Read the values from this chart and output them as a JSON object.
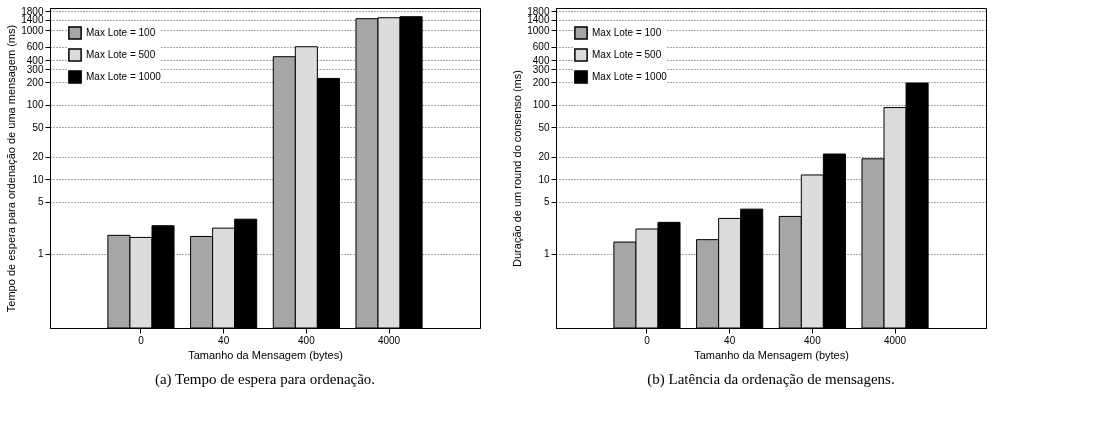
{
  "chart_data": [
    {
      "type": "bar",
      "title": "(a)  Tempo de espera para ordenação.",
      "xlabel": "Tamanho da Mensagem (bytes)",
      "ylabel": "Tempo de espera para ordenação de uma mensagem (ms)",
      "categories": [
        "0",
        "40",
        "400",
        "4000"
      ],
      "log": "y",
      "ylim": [
        0.1,
        2000
      ],
      "yticks": [
        1,
        5,
        10,
        20,
        50,
        100,
        200,
        300,
        400,
        600,
        1000,
        1400,
        1800
      ],
      "grid": "y",
      "legend": "top left",
      "series": [
        {
          "name": "Max Lote = 100",
          "color": "#a6a6a6",
          "values": [
            1.76,
            1.7,
            443,
            1437
          ]
        },
        {
          "name": "Max Lote = 500",
          "color": "#dcdcdc",
          "values": [
            1.65,
            2.2,
            603,
            1480
          ]
        },
        {
          "name": "Max Lote = 1000",
          "color": "#000000",
          "values": [
            2.37,
            2.9,
            226,
            1528
          ]
        }
      ]
    },
    {
      "type": "bar",
      "title": "(b)  Latência da ordenação de mensagens.",
      "xlabel": "Tamanho da Mensagem (bytes)",
      "ylabel": "Duração de um round do consenso (ms)",
      "categories": [
        "0",
        "40",
        "400",
        "4000"
      ],
      "log": "y",
      "ylim": [
        0.1,
        2000
      ],
      "yticks": [
        1,
        5,
        10,
        20,
        50,
        100,
        200,
        300,
        400,
        600,
        1000,
        1400,
        1800
      ],
      "grid": "y",
      "legend": "top left",
      "series": [
        {
          "name": "Max Lote = 100",
          "color": "#a6a6a6",
          "values": [
            1.43,
            1.54,
            3.16,
            18.8
          ]
        },
        {
          "name": "Max Lote = 500",
          "color": "#dcdcdc",
          "values": [
            2.14,
            2.97,
            11.4,
            91.8
          ]
        },
        {
          "name": "Max Lote = 1000",
          "color": "#000000",
          "values": [
            2.63,
            3.96,
            21.8,
            196
          ]
        }
      ]
    }
  ]
}
